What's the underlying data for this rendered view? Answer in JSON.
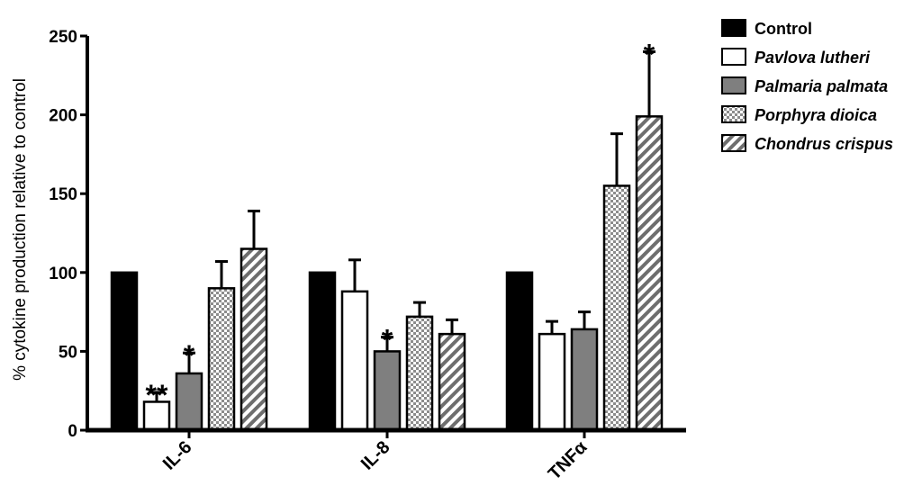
{
  "chart_data": {
    "type": "bar",
    "title": "",
    "xlabel": "",
    "ylabel": "% cytokine production relative to control",
    "ylim": [
      0,
      250
    ],
    "yticks": [
      0,
      50,
      100,
      150,
      200,
      250
    ],
    "categories": [
      "IL-6",
      "IL-8",
      "TNFα"
    ],
    "legend_position": "right",
    "series": [
      {
        "name": "Control",
        "pattern": "solid-black",
        "italic": false,
        "values": [
          100,
          100,
          100
        ],
        "errors": [
          0,
          0,
          0
        ],
        "significance": [
          "",
          "",
          ""
        ]
      },
      {
        "name": "Pavlova lutheri",
        "pattern": "white",
        "italic": true,
        "values": [
          18,
          88,
          61
        ],
        "errors": [
          6,
          20,
          8
        ],
        "significance": [
          "**",
          "",
          ""
        ]
      },
      {
        "name": "Palmaria palmata",
        "pattern": "solid-gray",
        "italic": true,
        "values": [
          36,
          50,
          64
        ],
        "errors": [
          13,
          9,
          11
        ],
        "significance": [
          "*",
          "*",
          ""
        ]
      },
      {
        "name": "Porphyra dioica",
        "pattern": "checker",
        "italic": true,
        "values": [
          90,
          72,
          155
        ],
        "errors": [
          17,
          9,
          33
        ],
        "significance": [
          "",
          "",
          ""
        ]
      },
      {
        "name": "Chondrus crispus",
        "pattern": "hatch",
        "italic": true,
        "values": [
          115,
          61,
          199
        ],
        "errors": [
          24,
          9,
          41
        ],
        "significance": [
          "",
          "",
          "*"
        ]
      }
    ],
    "colors": {
      "control": "#000000",
      "white_fill": "#ffffff",
      "gray_fill": "#7f7f7f",
      "axis": "#000000"
    }
  }
}
